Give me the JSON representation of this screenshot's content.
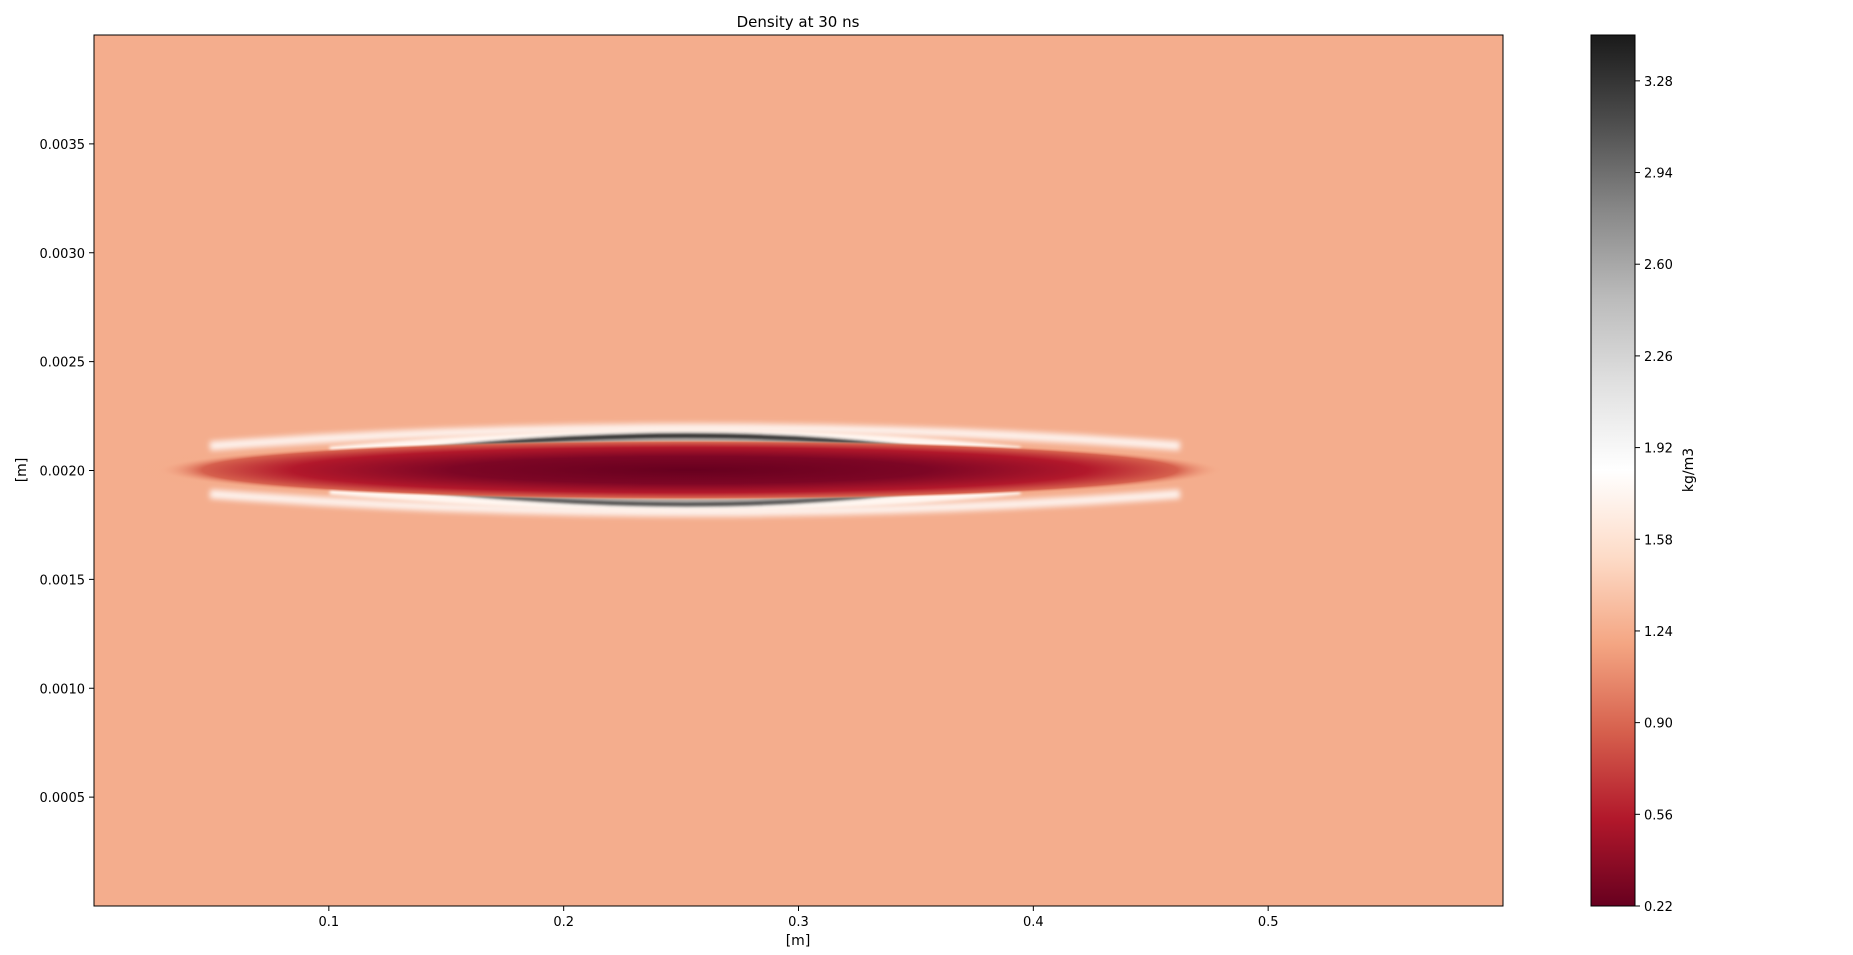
{
  "chart_data": {
    "type": "heatmap",
    "title": "Density at 30 ns",
    "xlabel": "[m]",
    "ylabel": "[m]",
    "xlim": [
      0.0,
      0.6
    ],
    "ylim": [
      0.0,
      0.004
    ],
    "x_ticks": [
      0.1,
      0.2,
      0.3,
      0.4,
      0.5
    ],
    "x_tick_labels": [
      "0.1",
      "0.2",
      "0.3",
      "0.4",
      "0.5"
    ],
    "y_ticks": [
      0.0005,
      0.001,
      0.0015,
      0.002,
      0.0025,
      0.003,
      0.0035
    ],
    "y_tick_labels": [
      "0.0005",
      "0.0010",
      "0.0015",
      "0.0020",
      "0.0025",
      "0.0030",
      "0.0035"
    ],
    "background_value": 1.24,
    "colormap": "RdGy",
    "colorbar": {
      "label": "kg/m3",
      "vmin": 0.22,
      "vmax": 3.45,
      "ticks": [
        0.22,
        0.56,
        0.9,
        1.24,
        1.58,
        1.92,
        2.26,
        2.6,
        2.94,
        3.28
      ],
      "tick_labels": [
        "0.22",
        "0.56",
        "0.90",
        "1.24",
        "1.58",
        "1.92",
        "2.26",
        "2.60",
        "2.94",
        "3.28"
      ],
      "stops": [
        "#67001f",
        "#b2182b",
        "#d6604d",
        "#f4a582",
        "#fddbc7",
        "#ffffff",
        "#e0e0e0",
        "#bababa",
        "#878787",
        "#4d4d4d",
        "#1a1a1a"
      ]
    },
    "features": {
      "low_density_core": {
        "x_center": 0.26,
        "y_center": 0.002,
        "x_half_width": 0.16,
        "y_half_height": 0.00012,
        "min_value": 0.22
      },
      "upper_high_density_shell": {
        "x_center": 0.26,
        "y_peak": 0.00215,
        "x_half_width": 0.2,
        "max_value": 3.45
      },
      "lower_high_density_shell": {
        "x_center": 0.26,
        "y_peak": 0.00185,
        "x_half_width": 0.2,
        "max_value": 3.0
      }
    }
  }
}
